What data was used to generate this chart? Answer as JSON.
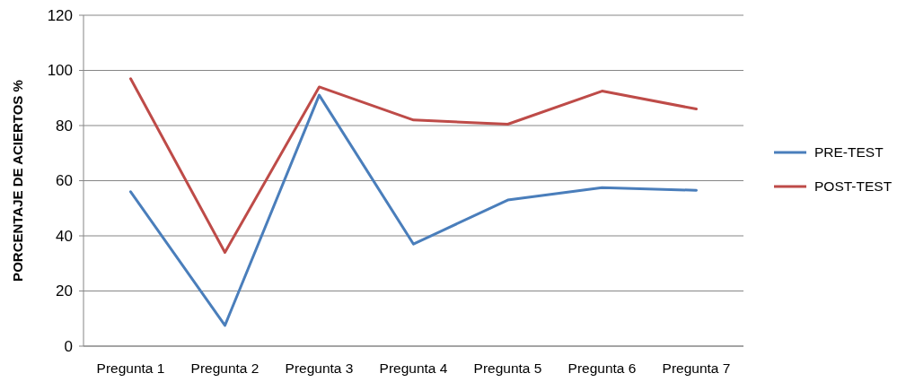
{
  "chart_data": {
    "type": "line",
    "ylabel": "PORCENTAJE DE ACIERTOS %",
    "categories": [
      "Pregunta 1",
      "Pregunta 2",
      "Pregunta 3",
      "Pregunta 4",
      "Pregunta 5",
      "Pregunta 6",
      "Pregunta 7"
    ],
    "series": [
      {
        "name": "PRE-TEST",
        "color": "#4a7ebb",
        "values": [
          56,
          7.5,
          91,
          37,
          53,
          57.5,
          56.5
        ]
      },
      {
        "name": "POST-TEST",
        "color": "#be4b48",
        "values": [
          97,
          34,
          94,
          82,
          80.5,
          92.5,
          86
        ]
      }
    ],
    "ylim": [
      0,
      120
    ],
    "yticks": [
      0,
      20,
      40,
      60,
      80,
      100,
      120
    ],
    "grid": "y",
    "legend": "right",
    "marker": "none",
    "line_style": "solid"
  }
}
